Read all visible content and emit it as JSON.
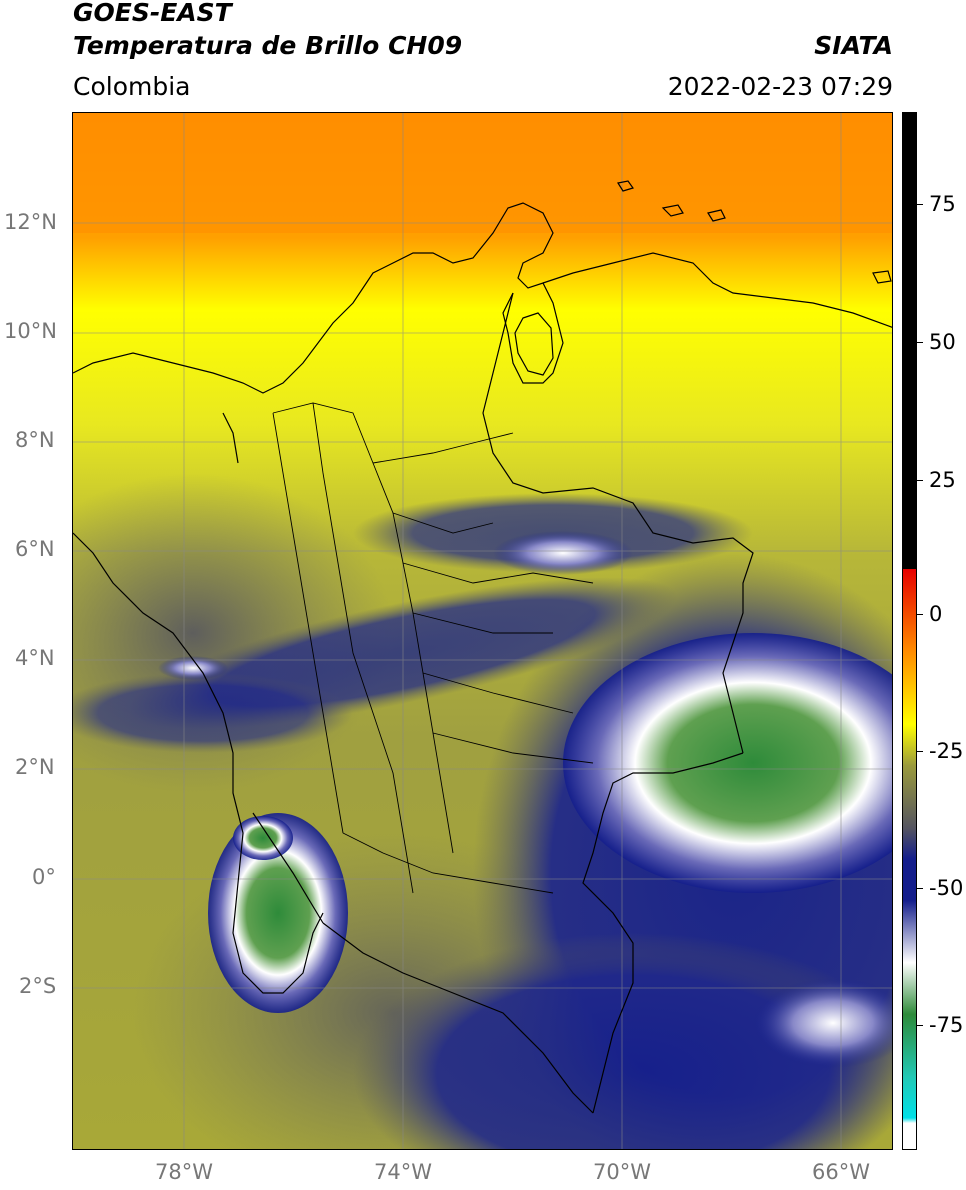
{
  "header": {
    "satellite": "GOES-EAST",
    "product": "Temperatura de Brillo CH09",
    "region": "Colombia",
    "agency": "SIATA",
    "datetime": "2022-02-23 07:29"
  },
  "axes": {
    "lat_labels": [
      "12°N",
      "10°N",
      "8°N",
      "6°N",
      "4°N",
      "2°N",
      "0°",
      "2°S"
    ],
    "lon_labels": [
      "78°W",
      "74°W",
      "70°W",
      "66°W"
    ]
  },
  "colorbar": {
    "labels": [
      "75",
      "50",
      "25",
      "0",
      "-25",
      "-50",
      "-75"
    ],
    "colors": {
      "black": "#000000",
      "red": "#e60000",
      "orange": "#ff8c00",
      "yellow": "#ffff00",
      "olive": "#9a9a3c",
      "gray": "#555560",
      "navy": "#141e8c",
      "white": "#ffffff",
      "green": "#2e8b3a",
      "teal": "#22c8b4",
      "cyan": "#00e0e8"
    }
  }
}
